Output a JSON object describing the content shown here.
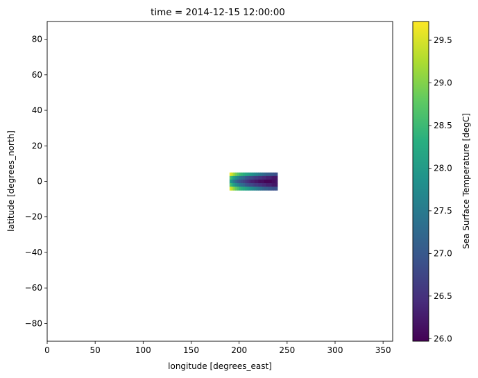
{
  "chart_data": {
    "type": "heatmap",
    "title": "time = 2014-12-15 12:00:00",
    "xlabel": "longitude [degrees_east]",
    "ylabel": "latitude [degrees_north]",
    "xlim": [
      0,
      360
    ],
    "ylim": [
      -90,
      90
    ],
    "xticks": [
      0,
      50,
      100,
      150,
      200,
      250,
      300,
      350
    ],
    "yticks": [
      -80,
      -60,
      -40,
      -20,
      0,
      20,
      40,
      60,
      80
    ],
    "grid": false,
    "colormap": "viridis",
    "colorbar": {
      "label": "Sea Surface Temperature [degC]",
      "range": [
        25.97,
        29.72
      ],
      "ticks": [
        26.0,
        26.5,
        27.0,
        27.5,
        28.0,
        28.5,
        29.0,
        29.5
      ],
      "tick_labels": [
        "26.0",
        "26.5",
        "27.0",
        "27.5",
        "28.0",
        "28.5",
        "29.0",
        "29.5"
      ],
      "position": "right"
    },
    "lon_range": [
      190,
      240
    ],
    "lat_range": [
      -5,
      5
    ],
    "lon_centers": [
      191,
      193,
      195,
      197,
      199,
      201,
      203,
      205,
      207,
      209,
      211,
      213,
      215,
      217,
      219,
      221,
      223,
      225,
      227,
      229,
      231,
      233,
      235,
      237,
      239
    ],
    "lat_centers": [
      4,
      2,
      0,
      -2,
      -4
    ],
    "values": [
      [
        29.6,
        29.4,
        29.1,
        28.9,
        28.7,
        28.5,
        28.4,
        28.3,
        28.2,
        28.1,
        28.0,
        27.9,
        27.8,
        27.7,
        27.6,
        27.5,
        27.4,
        27.3,
        27.2,
        27.1,
        27.1,
        27.0,
        27.0,
        26.9,
        26.9
      ],
      [
        28.6,
        28.3,
        28.0,
        27.8,
        27.6,
        27.4,
        27.3,
        27.2,
        27.0,
        26.9,
        26.8,
        26.8,
        26.7,
        26.6,
        26.6,
        26.5,
        26.5,
        26.4,
        26.4,
        26.3,
        26.3,
        26.3,
        26.2,
        26.2,
        26.2
      ],
      [
        28.0,
        27.7,
        27.4,
        27.2,
        27.0,
        26.9,
        26.8,
        26.7,
        26.6,
        26.5,
        26.4,
        26.3,
        26.3,
        26.2,
        26.2,
        26.1,
        26.1,
        26.1,
        26.0,
        26.0,
        26.0,
        26.0,
        26.1,
        26.1,
        26.2
      ],
      [
        28.6,
        28.3,
        28.0,
        27.8,
        27.6,
        27.4,
        27.3,
        27.2,
        27.0,
        26.9,
        26.8,
        26.8,
        26.7,
        26.6,
        26.6,
        26.5,
        26.5,
        26.4,
        26.4,
        26.3,
        26.3,
        26.3,
        26.2,
        26.2,
        26.2
      ],
      [
        29.5,
        29.3,
        29.0,
        28.8,
        28.6,
        28.4,
        28.3,
        28.2,
        28.1,
        28.0,
        27.9,
        27.8,
        27.7,
        27.6,
        27.5,
        27.4,
        27.3,
        27.2,
        27.1,
        27.1,
        27.0,
        27.0,
        26.9,
        26.9,
        26.9
      ]
    ]
  }
}
